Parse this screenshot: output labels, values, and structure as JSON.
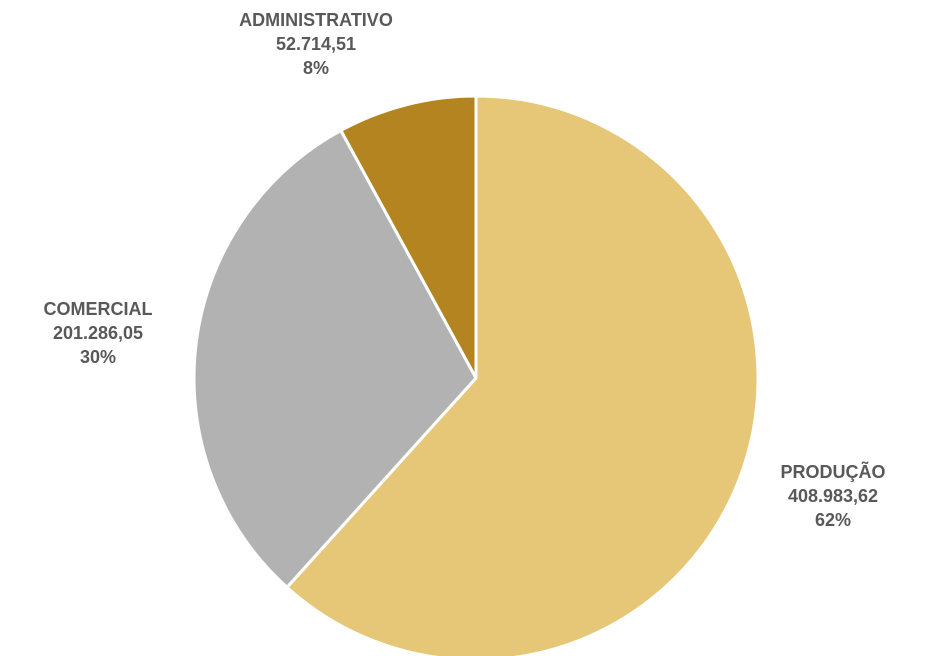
{
  "chart_data": {
    "type": "pie",
    "title": "",
    "start_angle_deg": 0,
    "direction": "clockwise",
    "slices": [
      {
        "category": "PRODUÇÃO",
        "value_text": "408.983,62",
        "value": 408983.62,
        "percent_text": "62%",
        "color": "#E6C677"
      },
      {
        "category": "COMERCIAL",
        "value_text": "201.286,05",
        "value": 201286.05,
        "percent_text": "30%",
        "color": "#B2B2B2"
      },
      {
        "category": "ADMINISTRATIVO",
        "value_text": "52.714,51",
        "value": 52714.51,
        "percent_text": "8%",
        "color": "#B38420"
      }
    ],
    "label_color": "#595959",
    "slice_border_color": "#FFFFFF",
    "legend": false
  }
}
